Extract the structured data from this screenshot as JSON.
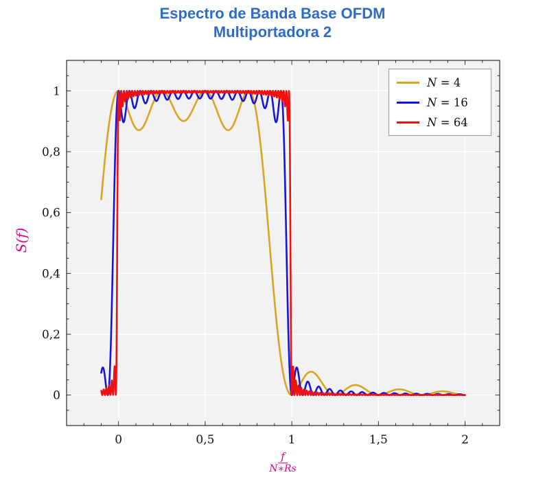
{
  "chart_data": {
    "type": "line",
    "title": "Espectro de Banda Base OFDM Multiportadora 2",
    "title_line1": "Espectro de Banda Base OFDM",
    "title_line2": "Multiportadora 2",
    "title_color": "#2e6bc8",
    "ylabel": "S(f)",
    "xlabel_numerator": "f",
    "xlabel_denominator": "N∗Rs",
    "axis_label_color": "#e6007e",
    "xlim": [
      -0.3,
      2.2
    ],
    "ylim": [
      -0.1,
      1.1
    ],
    "x_ticks": {
      "values": [
        0,
        0.5,
        1,
        1.5,
        2
      ],
      "labels": [
        "0",
        "0,5",
        "1",
        "1,5",
        "2"
      ]
    },
    "y_ticks": {
      "values": [
        0,
        0.2,
        0.4,
        0.6,
        0.8,
        1
      ],
      "labels": [
        "0",
        "0,2",
        "0,4",
        "0,6",
        "0,8",
        "1"
      ]
    },
    "x_minor_step": 0.1,
    "y_minor_step": 0.05,
    "grid": "major",
    "grid_color": "#ffffff",
    "plot_bg": "#f2f2f2",
    "border_color": "#000000",
    "legend": {
      "position": "top-right",
      "entries": [
        "N = 4",
        "N = 16",
        "N = 64"
      ]
    },
    "curve_model": "S(x) = sum_{k=0}^{N-1} sinc^2(N*x - k), sinc(u) = sin(pi*u)/(pi*u), x = f/(N*Rs)",
    "x_start": -0.1,
    "x_end": 2.0,
    "samples": 1600,
    "series": [
      {
        "id": "n4",
        "label": "N = 4",
        "label_var": "N",
        "label_rest": " = 4",
        "N": 4,
        "color": "#d9a420",
        "key_points": [
          [
            -0.1,
            0.64
          ],
          [
            0,
            1.0
          ],
          [
            0.125,
            0.9
          ],
          [
            0.375,
            0.9
          ],
          [
            0.75,
            1.0
          ],
          [
            0.875,
            0.47
          ],
          [
            1.0,
            0.0
          ],
          [
            1.1,
            0.075
          ],
          [
            1.25,
            0.0
          ],
          [
            1.35,
            0.05
          ],
          [
            1.6,
            0.035
          ],
          [
            1.85,
            0.025
          ],
          [
            2.0,
            0.0
          ]
        ]
      },
      {
        "id": "n16",
        "label": "N = 16",
        "label_var": "N",
        "label_rest": " = 16",
        "N": 16,
        "color": "#1414dd",
        "key_points": [
          [
            -0.09,
            0.07
          ],
          [
            -0.0625,
            0.0
          ],
          [
            0,
            1.0
          ],
          [
            0.5,
            0.97
          ],
          [
            0.9375,
            1.0
          ],
          [
            1.0,
            0.05
          ],
          [
            1.09,
            0.07
          ],
          [
            1.2,
            0.03
          ],
          [
            1.5,
            0.005
          ],
          [
            2.0,
            0.0
          ]
        ]
      },
      {
        "id": "n64",
        "label": "N = 64",
        "label_var": "N",
        "label_rest": " = 64",
        "N": 64,
        "color": "#ee1111",
        "key_points": [
          [
            -0.03,
            0.01
          ],
          [
            0,
            1.0
          ],
          [
            0.5,
            0.995
          ],
          [
            0.984,
            1.0
          ],
          [
            1.01,
            0.05
          ],
          [
            1.1,
            0.01
          ],
          [
            1.5,
            0.002
          ],
          [
            2.0,
            0.0
          ]
        ]
      }
    ]
  }
}
